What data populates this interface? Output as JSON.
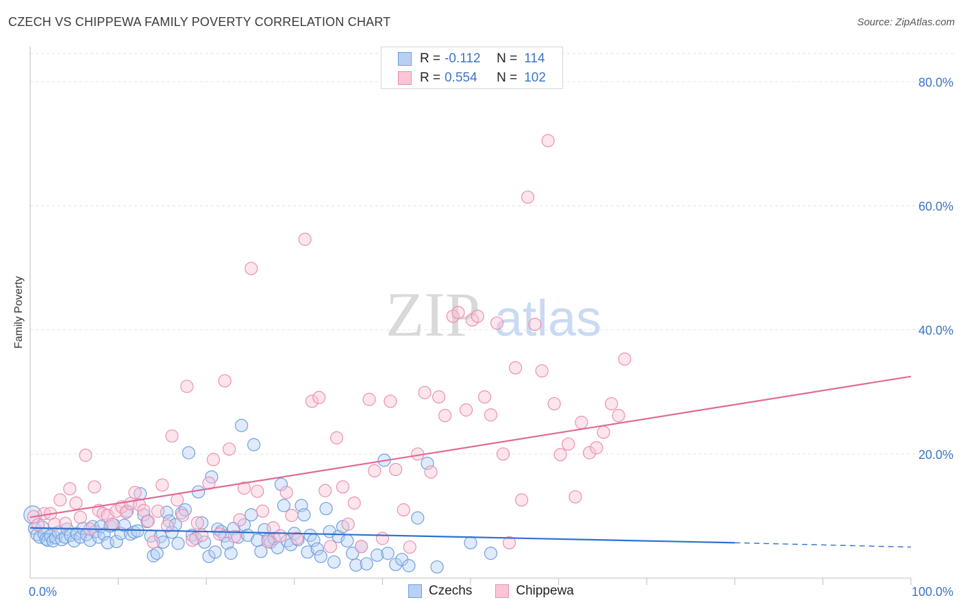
{
  "title": "CZECH VS CHIPPEWA FAMILY POVERTY CORRELATION CHART",
  "source": "Source: ZipAtlas.com",
  "watermark": {
    "zip": "ZIP",
    "atlas": "atlas"
  },
  "legend": {
    "rows": [
      {
        "r_label": "R =",
        "r_value": "-0.112",
        "n_label": "N =",
        "n_value": "114"
      },
      {
        "r_label": "R =",
        "r_value": "0.554",
        "n_label": "N =",
        "n_value": "102"
      }
    ]
  },
  "chart_data": {
    "type": "scatter",
    "xlabel": "",
    "ylabel": "Family Poverty",
    "xlim": [
      0,
      100
    ],
    "ylim": [
      0,
      85
    ],
    "x_tick_labels": [
      "0.0%",
      "100.0%"
    ],
    "y_ticks": [
      20,
      40,
      60,
      80
    ],
    "y_tick_labels": [
      "20.0%",
      "40.0%",
      "60.0%",
      "80.0%"
    ],
    "grid": true,
    "legend_position": "bottom-center",
    "colors": {
      "czechs": "#6f9fe0",
      "czechs_fill": "#b7d0f3",
      "czechs_line": "#2d6fce",
      "chippewa": "#ec8fb0",
      "chippewa_fill": "#f9c6d7",
      "chippewa_line": "#e06a95"
    },
    "series": [
      {
        "name": "Czechs",
        "trend": {
          "x0": 0,
          "y0": 8.1,
          "x1": 80,
          "y1": 5.7,
          "dash_to": 100,
          "dash_y": 5.0
        },
        "points": [
          [
            0.3,
            10.2
          ],
          [
            0.5,
            8.0
          ],
          [
            0.8,
            7.0
          ],
          [
            1.1,
            6.6
          ],
          [
            1.4,
            8.2
          ],
          [
            1.6,
            7.1
          ],
          [
            1.8,
            6.3
          ],
          [
            2.0,
            6.1
          ],
          [
            2.3,
            6.8
          ],
          [
            2.6,
            6.0
          ],
          [
            2.9,
            6.5
          ],
          [
            3.2,
            7.4
          ],
          [
            3.6,
            6.2
          ],
          [
            4.0,
            6.6
          ],
          [
            4.2,
            7.9
          ],
          [
            4.6,
            6.9
          ],
          [
            5.0,
            6.0
          ],
          [
            5.3,
            7.2
          ],
          [
            5.7,
            6.6
          ],
          [
            6.0,
            8.0
          ],
          [
            6.4,
            7.0
          ],
          [
            6.8,
            6.1
          ],
          [
            7.1,
            8.3
          ],
          [
            7.4,
            7.5
          ],
          [
            7.8,
            6.6
          ],
          [
            8.0,
            8.3
          ],
          [
            8.4,
            7.1
          ],
          [
            8.8,
            5.7
          ],
          [
            9.1,
            8.4
          ],
          [
            9.5,
            8.6
          ],
          [
            9.8,
            5.9
          ],
          [
            10.3,
            7.2
          ],
          [
            10.7,
            8.5
          ],
          [
            11.0,
            10.8
          ],
          [
            11.4,
            7.1
          ],
          [
            11.8,
            7.4
          ],
          [
            12.2,
            7.6
          ],
          [
            12.5,
            13.6
          ],
          [
            12.9,
            10.2
          ],
          [
            13.3,
            9.1
          ],
          [
            13.7,
            6.8
          ],
          [
            14.0,
            3.6
          ],
          [
            14.4,
            4.0
          ],
          [
            14.8,
            6.7
          ],
          [
            15.1,
            5.8
          ],
          [
            15.5,
            10.6
          ],
          [
            15.8,
            9.2
          ],
          [
            16.1,
            7.4
          ],
          [
            16.5,
            8.6
          ],
          [
            16.8,
            5.6
          ],
          [
            17.2,
            10.5
          ],
          [
            17.6,
            11.0
          ],
          [
            18.0,
            20.2
          ],
          [
            18.4,
            6.9
          ],
          [
            18.8,
            6.4
          ],
          [
            19.1,
            13.9
          ],
          [
            19.5,
            8.9
          ],
          [
            19.8,
            5.8
          ],
          [
            20.3,
            3.5
          ],
          [
            20.6,
            16.3
          ],
          [
            21.0,
            4.2
          ],
          [
            21.3,
            7.9
          ],
          [
            21.7,
            7.5
          ],
          [
            22.1,
            6.8
          ],
          [
            22.4,
            5.6
          ],
          [
            22.8,
            4.0
          ],
          [
            23.1,
            8.0
          ],
          [
            23.6,
            6.6
          ],
          [
            24.0,
            24.6
          ],
          [
            24.3,
            8.6
          ],
          [
            24.7,
            6.9
          ],
          [
            25.1,
            10.2
          ],
          [
            25.4,
            21.5
          ],
          [
            25.8,
            6.1
          ],
          [
            26.2,
            4.3
          ],
          [
            26.6,
            7.8
          ],
          [
            27.0,
            6.2
          ],
          [
            27.3,
            5.8
          ],
          [
            27.7,
            6.4
          ],
          [
            28.1,
            4.9
          ],
          [
            28.5,
            15.1
          ],
          [
            28.8,
            11.7
          ],
          [
            29.2,
            6.0
          ],
          [
            29.6,
            5.4
          ],
          [
            30.0,
            7.2
          ],
          [
            30.4,
            6.2
          ],
          [
            30.8,
            11.7
          ],
          [
            31.1,
            10.2
          ],
          [
            31.5,
            4.2
          ],
          [
            31.8,
            6.9
          ],
          [
            32.2,
            6.1
          ],
          [
            32.6,
            4.7
          ],
          [
            33.0,
            3.5
          ],
          [
            33.6,
            11.2
          ],
          [
            34.0,
            7.5
          ],
          [
            34.5,
            2.6
          ],
          [
            35.0,
            6.7
          ],
          [
            35.5,
            8.3
          ],
          [
            36.0,
            6.0
          ],
          [
            36.6,
            4.0
          ],
          [
            37.0,
            2.1
          ],
          [
            37.6,
            5.1
          ],
          [
            38.2,
            2.3
          ],
          [
            39.4,
            3.7
          ],
          [
            40.2,
            19.0
          ],
          [
            40.6,
            4.0
          ],
          [
            41.5,
            2.2
          ],
          [
            42.2,
            3.0
          ],
          [
            43.0,
            2.0
          ],
          [
            44.0,
            9.7
          ],
          [
            45.1,
            18.5
          ],
          [
            46.2,
            1.8
          ],
          [
            50.0,
            5.7
          ],
          [
            52.3,
            4.0
          ]
        ]
      },
      {
        "name": "Chippewa",
        "trend": {
          "x0": 0,
          "y0": 9.8,
          "x1": 100,
          "y1": 32.5
        },
        "points": [
          [
            0.4,
            9.9
          ],
          [
            0.9,
            8.6
          ],
          [
            1.6,
            10.4
          ],
          [
            2.3,
            10.4
          ],
          [
            2.8,
            8.7
          ],
          [
            3.4,
            12.6
          ],
          [
            4.0,
            8.8
          ],
          [
            4.5,
            14.4
          ],
          [
            5.2,
            12.1
          ],
          [
            5.7,
            9.8
          ],
          [
            6.3,
            19.8
          ],
          [
            6.8,
            7.9
          ],
          [
            7.3,
            14.7
          ],
          [
            7.8,
            10.9
          ],
          [
            8.3,
            10.4
          ],
          [
            8.8,
            10.1
          ],
          [
            9.3,
            8.7
          ],
          [
            9.8,
            10.8
          ],
          [
            10.4,
            11.5
          ],
          [
            10.9,
            10.6
          ],
          [
            11.4,
            12.0
          ],
          [
            11.9,
            13.8
          ],
          [
            12.4,
            11.8
          ],
          [
            12.9,
            10.9
          ],
          [
            13.4,
            9.2
          ],
          [
            14.0,
            5.8
          ],
          [
            14.5,
            10.8
          ],
          [
            15.0,
            15.0
          ],
          [
            15.6,
            8.4
          ],
          [
            16.1,
            22.9
          ],
          [
            16.7,
            12.6
          ],
          [
            17.3,
            10.1
          ],
          [
            17.8,
            30.9
          ],
          [
            18.4,
            6.1
          ],
          [
            19.0,
            8.9
          ],
          [
            19.5,
            6.9
          ],
          [
            20.3,
            15.3
          ],
          [
            20.8,
            19.1
          ],
          [
            21.5,
            7.1
          ],
          [
            22.1,
            31.8
          ],
          [
            22.6,
            20.8
          ],
          [
            23.2,
            6.7
          ],
          [
            23.8,
            9.4
          ],
          [
            24.3,
            14.5
          ],
          [
            25.1,
            49.9
          ],
          [
            25.8,
            14.0
          ],
          [
            26.4,
            10.8
          ],
          [
            27.0,
            5.9
          ],
          [
            27.6,
            8.1
          ],
          [
            28.4,
            6.8
          ],
          [
            29.1,
            13.8
          ],
          [
            29.7,
            10.1
          ],
          [
            30.3,
            6.4
          ],
          [
            31.2,
            54.6
          ],
          [
            32.0,
            28.5
          ],
          [
            32.8,
            29.1
          ],
          [
            33.5,
            14.1
          ],
          [
            34.1,
            5.1
          ],
          [
            34.8,
            22.6
          ],
          [
            35.5,
            14.7
          ],
          [
            36.1,
            8.7
          ],
          [
            36.8,
            12.1
          ],
          [
            37.6,
            5.1
          ],
          [
            38.5,
            28.8
          ],
          [
            39.1,
            17.3
          ],
          [
            40.0,
            6.4
          ],
          [
            40.9,
            28.5
          ],
          [
            41.5,
            17.5
          ],
          [
            42.4,
            11.0
          ],
          [
            43.1,
            5.0
          ],
          [
            44.0,
            20.0
          ],
          [
            44.8,
            29.9
          ],
          [
            45.5,
            17.1
          ],
          [
            46.4,
            29.2
          ],
          [
            47.1,
            26.2
          ],
          [
            48.0,
            42.2
          ],
          [
            48.6,
            42.8
          ],
          [
            49.5,
            27.1
          ],
          [
            50.2,
            41.6
          ],
          [
            50.8,
            42.2
          ],
          [
            51.6,
            29.2
          ],
          [
            52.3,
            26.3
          ],
          [
            53.0,
            41.1
          ],
          [
            53.7,
            20.0
          ],
          [
            54.4,
            5.7
          ],
          [
            55.1,
            33.9
          ],
          [
            55.8,
            12.6
          ],
          [
            56.5,
            61.4
          ],
          [
            57.3,
            40.9
          ],
          [
            58.1,
            33.4
          ],
          [
            58.8,
            70.5
          ],
          [
            59.5,
            28.1
          ],
          [
            60.2,
            19.9
          ],
          [
            61.1,
            21.6
          ],
          [
            61.9,
            13.1
          ],
          [
            62.6,
            25.1
          ],
          [
            63.5,
            20.2
          ],
          [
            64.3,
            21.0
          ],
          [
            65.1,
            23.5
          ],
          [
            66.0,
            28.1
          ],
          [
            66.8,
            26.2
          ],
          [
            67.5,
            35.3
          ]
        ]
      }
    ]
  }
}
